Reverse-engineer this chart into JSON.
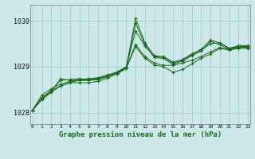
{
  "title": "Graphe pression niveau de la mer (hPa)",
  "bg_color": "#cce8e8",
  "grid_color": "#aacccc",
  "line_color": "#1a6b1a",
  "x_min": 0,
  "x_max": 23,
  "y_min": 1027.75,
  "y_max": 1030.35,
  "y_ticks": [
    1028,
    1029,
    1030
  ],
  "x_ticks": [
    0,
    1,
    2,
    3,
    4,
    5,
    6,
    7,
    8,
    9,
    10,
    11,
    12,
    13,
    14,
    15,
    16,
    17,
    18,
    19,
    20,
    21,
    22,
    23
  ],
  "series": [
    [
      1028.05,
      1028.38,
      1028.52,
      1028.62,
      1028.68,
      1028.72,
      1028.74,
      1028.76,
      1028.82,
      1028.88,
      1028.98,
      1029.48,
      1029.22,
      1029.08,
      1029.03,
      1029.03,
      1029.08,
      1029.14,
      1029.22,
      1029.32,
      1029.42,
      1029.38,
      1029.42,
      1029.42
    ],
    [
      1028.05,
      1028.32,
      1028.48,
      1028.58,
      1028.66,
      1028.7,
      1028.72,
      1028.74,
      1028.8,
      1028.86,
      1028.96,
      1029.44,
      1029.18,
      1029.04,
      1029.0,
      1028.88,
      1028.94,
      1029.06,
      1029.18,
      1029.28,
      1029.4,
      1029.36,
      1029.4,
      1029.4
    ],
    [
      1028.05,
      1028.32,
      1028.48,
      1028.7,
      1028.72,
      1028.74,
      1028.72,
      1028.74,
      1028.8,
      1028.88,
      1029.0,
      1029.78,
      1029.45,
      1029.22,
      1029.2,
      1029.08,
      1029.14,
      1029.26,
      1029.36,
      1029.5,
      1029.52,
      1029.4,
      1029.44,
      1029.44
    ],
    [
      1028.05,
      1028.3,
      1028.46,
      1028.74,
      1028.7,
      1028.7,
      1028.7,
      1028.72,
      1028.78,
      1028.86,
      1028.98,
      1030.05,
      1029.52,
      1029.24,
      1029.22,
      1029.1,
      1029.16,
      1029.28,
      1029.38,
      1029.58,
      1029.52,
      1029.4,
      1029.46,
      1029.46
    ],
    [
      1028.05,
      1028.28,
      1028.44,
      1028.58,
      1028.65,
      1028.65,
      1028.65,
      1028.68,
      1028.75,
      1028.84,
      1028.96,
      1029.95,
      1029.48,
      1029.2,
      1029.18,
      1029.05,
      1029.12,
      1029.24,
      1029.34,
      1029.55,
      1029.48,
      1029.38,
      1029.43,
      1029.43
    ]
  ]
}
